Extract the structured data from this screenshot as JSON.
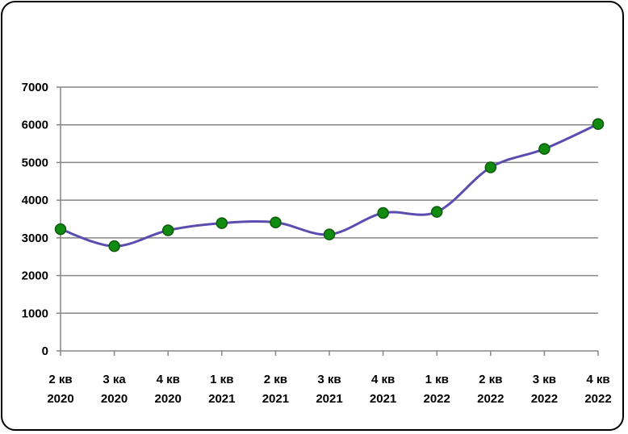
{
  "chart_data": {
    "type": "line",
    "categories": [
      [
        "2 кв",
        "2020"
      ],
      [
        "3 ка",
        "2020"
      ],
      [
        "4 кв",
        "2020"
      ],
      [
        "1 кв",
        "2021"
      ],
      [
        "2 кв",
        "2021"
      ],
      [
        "3 кв",
        "2021"
      ],
      [
        "4 кв",
        "2021"
      ],
      [
        "1 кв",
        "2022"
      ],
      [
        "2 кв",
        "2022"
      ],
      [
        "3 кв",
        "2022"
      ],
      [
        "4 кв",
        "2022"
      ]
    ],
    "series": [
      {
        "values": [
          3230,
          2780,
          3200,
          3390,
          3410,
          3090,
          3660,
          3690,
          4870,
          5360,
          6020
        ]
      }
    ],
    "title": "",
    "xlabel": "",
    "ylabel": "",
    "ylim": [
      0,
      7000
    ],
    "yticks": [
      0,
      1000,
      2000,
      3000,
      4000,
      5000,
      6000,
      7000
    ],
    "grid": "horizontal",
    "legend": "none",
    "colors": {
      "line": "#5b4db0",
      "marker_fill": "#118a11",
      "marker_stroke": "#0a5a0a",
      "grid": "#868686",
      "axis": "#868686"
    }
  }
}
